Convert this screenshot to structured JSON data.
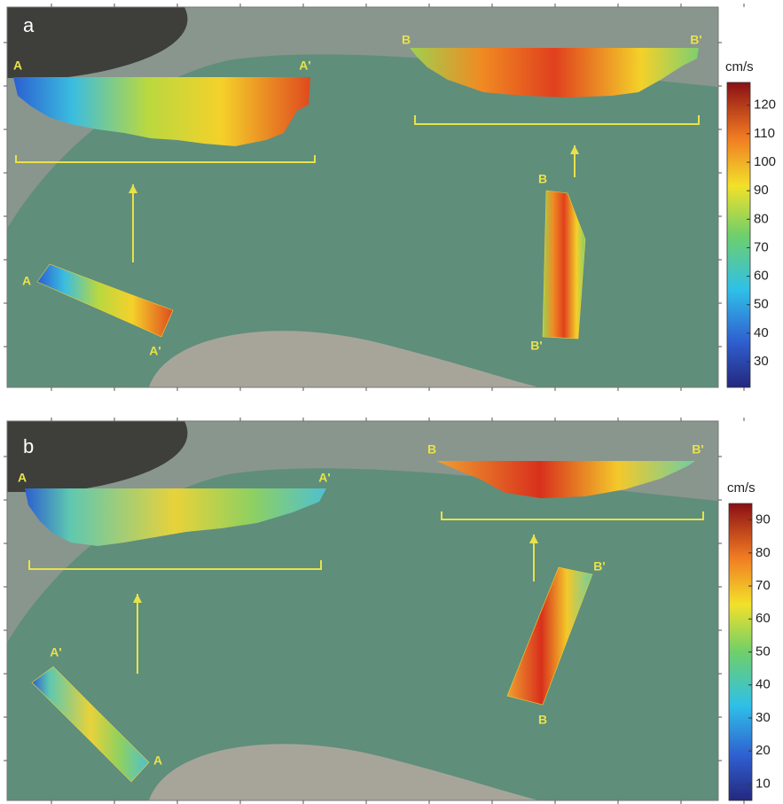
{
  "panels": [
    {
      "label": "a",
      "section_labels": [
        "A",
        "A'",
        "B",
        "B'",
        "A",
        "A'",
        "B",
        "B'"
      ],
      "colorbar": {
        "unit": "cm/s",
        "lim": [
          21,
          128
        ],
        "ticks": [
          30,
          40,
          50,
          60,
          70,
          80,
          90,
          100,
          110,
          120
        ]
      }
    },
    {
      "label": "b",
      "section_labels": [
        "A",
        "A'",
        "B",
        "B'",
        "A'",
        "A",
        "B'",
        "B"
      ],
      "colorbar": {
        "unit": "cm/s",
        "lim": [
          5,
          95
        ],
        "ticks": [
          10,
          20,
          30,
          40,
          50,
          60,
          70,
          80,
          90
        ]
      }
    }
  ]
}
